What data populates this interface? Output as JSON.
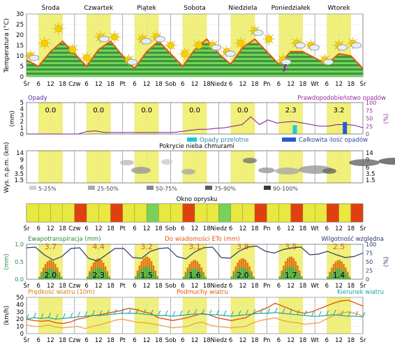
{
  "days": [
    "Środa",
    "Czwartek",
    "Piątek",
    "Sobota",
    "Niedziela",
    "Poniedziałek",
    "Wtorek"
  ],
  "time_ticks": [
    "Śr",
    "6",
    "12",
    "18",
    "Czw",
    "6",
    "12",
    "18",
    "Pt",
    "6",
    "12",
    "18",
    "Sob",
    "6",
    "12",
    "18",
    "Niedz",
    "6",
    "12",
    "18",
    "Pn",
    "6",
    "12",
    "18",
    "Wt",
    "6",
    "12",
    "18",
    "Śr"
  ],
  "colors": {
    "day_band": "#f0f07a",
    "temp_line": "#e05a10",
    "temp_fill": "#f0c040",
    "green_dark": "#1e8a3a",
    "green_light": "#5cd65c",
    "precip": "#7a1a9a",
    "cloud": "#808080",
    "spray_red": "#e04010",
    "spray_yellow": "#e8e840",
    "spray_green": "#7ad05a",
    "evap": "#e07a10",
    "humidity": "#283a6a",
    "wind": "#e07a10",
    "wind_dir": "#20a0a0"
  },
  "chart_data": [
    {
      "type": "area",
      "name": "temperature",
      "ylabel": "Temperatura (°C)",
      "ylim": [
        0,
        30
      ],
      "yticks": [
        0,
        5,
        10,
        15,
        20,
        25,
        30
      ],
      "x": [
        0,
        6,
        12,
        18,
        24,
        30,
        36,
        42,
        48,
        54,
        60,
        66,
        72,
        78,
        84,
        90,
        96,
        102,
        108,
        114,
        120,
        126,
        132,
        138,
        144,
        150,
        156,
        162,
        168
      ],
      "values": [
        8,
        5,
        12,
        17,
        11,
        5,
        13,
        17,
        10,
        4,
        12,
        17,
        11,
        5,
        13,
        18,
        11,
        6,
        14,
        18,
        12,
        6,
        12,
        12,
        9,
        6,
        11,
        10,
        4
      ],
      "icons": [
        "partly-cloudy",
        "sun",
        "sun",
        "sun",
        "sun",
        "partly-cloudy",
        "sun",
        "partly-cloudy",
        "partly-cloudy",
        "partly-cloudy",
        "sun",
        "sun",
        "sun",
        "partly-cloudy",
        "partly-cloudy",
        "sun",
        "partly-cloudy",
        "sun",
        "thunderstorm",
        "partly-cloudy",
        "partly-cloudy",
        "partly-cloudy",
        "partly-cloudy",
        "partly-cloudy"
      ]
    },
    {
      "type": "bar",
      "name": "precipitation",
      "title_left": "Opady",
      "title_right": "Prawdopodobieństwo opadów",
      "ylabel_left": "(mm)",
      "ylabel_right": "(%)",
      "ylim_left": [
        0,
        5
      ],
      "ylim_right": [
        0,
        100
      ],
      "yticks_left": [
        0,
        1,
        2,
        3,
        4,
        5
      ],
      "yticks_right": [
        0,
        25,
        50,
        75,
        100
      ],
      "daily_totals": [
        "0.0",
        "0.0",
        "0.0",
        "0.0",
        "0.0",
        "2.3",
        "3.2"
      ],
      "legend": [
        "Opady przelotne",
        "Całkowita ilość opadów"
      ],
      "probability": [
        0,
        0,
        0,
        0,
        0,
        0,
        0,
        8,
        10,
        5,
        5,
        5,
        5,
        5,
        5,
        5,
        5,
        5,
        8,
        12,
        15,
        15,
        18,
        20,
        25,
        30,
        55,
        30,
        45,
        35,
        38,
        40,
        35,
        30,
        25,
        25,
        30,
        30,
        28,
        20
      ],
      "bars": [
        {
          "x": 134,
          "value": 1.4,
          "kind": "showers"
        },
        {
          "x": 159,
          "value": 1.9,
          "kind": "total"
        }
      ]
    },
    {
      "type": "heatmap",
      "name": "cloud-cover",
      "title": "Pokrycie nieba chmurami",
      "ylabel": "Wys. n.p.m. (km)",
      "yticks": [
        "1.5",
        "3.5",
        "6",
        "9",
        "14"
      ],
      "yticks_right": [
        "1.5",
        "3.5",
        "6",
        "9",
        "14"
      ],
      "legend": [
        "5-25%",
        "25-50%",
        "50-75%",
        "75-90%",
        "90-100%"
      ]
    },
    {
      "type": "table",
      "name": "spray-window",
      "title": "Okno oprysku",
      "segments": [
        "yellow",
        "yellow",
        "yellow",
        "yellow",
        "red",
        "yellow",
        "yellow",
        "red",
        "yellow",
        "yellow",
        "green",
        "yellow",
        "yellow",
        "red",
        "yellow",
        "yellow",
        "green",
        "yellow",
        "yellow",
        "red",
        "yellow",
        "yellow",
        "red",
        "yellow",
        "yellow",
        "red",
        "yellow",
        "red"
      ]
    },
    {
      "type": "area",
      "name": "evapotranspiration",
      "title_left": "Ewapotranspiracja (mm)",
      "title_center": "Do wiadomości ETo (mm)",
      "title_right": "Wilgotność względna",
      "ylabel_left": "(mm)",
      "ylabel_right": "(%)",
      "ylim_left": [
        0,
        1
      ],
      "ylim_right": [
        0,
        100
      ],
      "yticks_left": [
        "0.0",
        "0.5",
        "1.0"
      ],
      "yticks_right": [
        0,
        25,
        50,
        75,
        100
      ],
      "eto_daily": [
        "3.7",
        "4.4",
        "3.2",
        "3.1",
        "3.8",
        "3.5",
        "2.5"
      ],
      "evap_daily": [
        "2.0",
        "2.3",
        "1.5",
        "1.6",
        "2.0",
        "1.7",
        "1.4"
      ],
      "humidity": [
        90,
        92,
        70,
        55,
        65,
        88,
        90,
        60,
        52,
        70,
        88,
        88,
        62,
        60,
        80,
        88,
        90,
        65,
        58,
        78,
        90,
        92,
        62,
        60,
        80,
        92,
        95,
        80,
        75,
        85,
        90,
        92,
        70,
        72,
        80,
        70,
        62,
        65,
        75
      ]
    },
    {
      "type": "line",
      "name": "wind",
      "title_left": "Prędkość wiatru (10m)",
      "title_center": "Podmuchy wiatru",
      "title_right": "Kierunek wiatru",
      "ylabel": "(km/h)",
      "ylim": [
        0,
        50
      ],
      "yticks": [
        0,
        10,
        20,
        30,
        40,
        50
      ],
      "speed": [
        12,
        10,
        10,
        12,
        9,
        8,
        9,
        10,
        7,
        10,
        12,
        15,
        18,
        20,
        18,
        16,
        15,
        14,
        12,
        10,
        8,
        9,
        10,
        14,
        16,
        12,
        10,
        9,
        8,
        9,
        10,
        15,
        18,
        20,
        22,
        18,
        16,
        15,
        13,
        14,
        15,
        20,
        25,
        28,
        30,
        28,
        24
      ],
      "gusts": [
        20,
        18,
        17,
        18,
        15,
        14,
        16,
        20,
        22,
        25,
        26,
        28,
        30,
        32,
        35,
        33,
        30,
        28,
        22,
        20,
        18,
        20,
        22,
        25,
        28,
        26,
        22,
        20,
        18,
        20,
        22,
        28,
        32,
        36,
        42,
        38,
        34,
        30,
        28,
        30,
        34,
        38,
        42,
        45,
        46,
        42,
        38
      ],
      "direction": [
        20,
        22,
        21,
        22,
        20,
        21,
        22,
        23,
        24,
        25,
        25,
        26,
        27,
        28,
        28,
        28,
        27,
        26,
        25,
        25,
        24,
        25,
        26,
        27,
        27,
        26,
        26,
        25,
        24,
        25,
        26,
        27,
        28,
        28,
        29,
        28,
        27,
        26,
        25,
        24,
        24,
        25,
        26,
        25,
        24,
        24,
        23
      ]
    }
  ]
}
